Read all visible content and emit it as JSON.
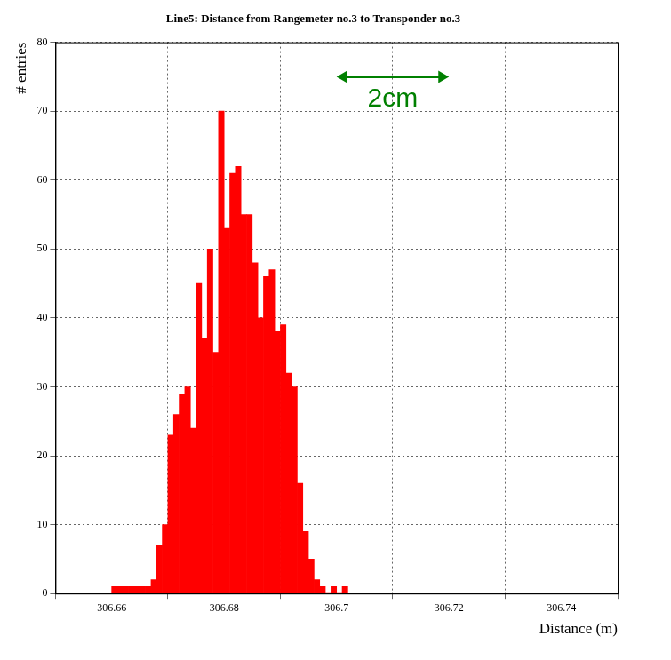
{
  "chart_data": {
    "type": "histogram",
    "title": "Line5: Distance from Rangemeter no.3 to Transponder no.3",
    "x_label": "Distance (m)",
    "y_label": "# entries",
    "bins": [
      306.66,
      306.661,
      306.662,
      306.663,
      306.664,
      306.665,
      306.666,
      306.667,
      306.668,
      306.669,
      306.67,
      306.671,
      306.672,
      306.673,
      306.674,
      306.675,
      306.676,
      306.677,
      306.678,
      306.679,
      306.68,
      306.681,
      306.682,
      306.683,
      306.684,
      306.685,
      306.686,
      306.687,
      306.688,
      306.689,
      306.69,
      306.691,
      306.692,
      306.693,
      306.694,
      306.695,
      306.696,
      306.697,
      306.698,
      306.699,
      306.7,
      306.701,
      306.702
    ],
    "values": [
      1,
      1,
      1,
      1,
      1,
      1,
      1,
      2,
      7,
      10,
      23,
      26,
      29,
      30,
      24,
      45,
      37,
      50,
      35,
      70,
      53,
      61,
      62,
      55,
      55,
      48,
      40,
      46,
      47,
      38,
      39,
      32,
      30,
      16,
      9,
      5,
      2,
      1,
      0,
      1,
      0,
      1
    ],
    "color": "#ff0000",
    "xlim": [
      306.65,
      306.75
    ],
    "xticks": [
      306.66,
      306.68,
      306.7,
      306.72,
      306.74
    ],
    "ylim": [
      0,
      80
    ],
    "yticks": [
      0,
      10,
      20,
      30,
      40,
      50,
      60,
      70,
      80
    ],
    "grid": true,
    "annotations": [
      {
        "text": "2cm",
        "from": 306.7,
        "to": 306.72,
        "y": 75,
        "color": "#008000"
      }
    ]
  }
}
